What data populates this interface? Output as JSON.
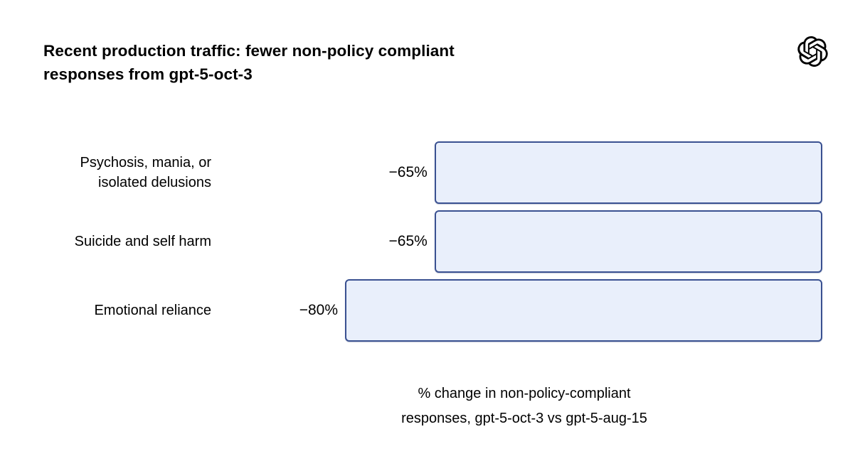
{
  "header": {
    "title": "Recent production traffic: fewer non-policy compliant\nresponses from gpt-5-oct-3",
    "logo": "openai-logo"
  },
  "chart_data": {
    "type": "bar",
    "orientation": "horizontal",
    "bar_anchor": "right",
    "title": "Recent production traffic: fewer non-policy compliant responses from gpt-5-oct-3",
    "xlabel": "% change in non-policy-compliant responses, gpt-5-oct-3 vs gpt-5-aug-15",
    "xlabel_display": "% change in non-policy-compliant\nresponses, gpt-5-oct-3 vs gpt-5-aug-15",
    "categories": [
      "Psychosis, mania, or isolated delusions",
      "Suicide and self harm",
      "Emotional reliance"
    ],
    "values": [
      -65,
      -65,
      -80
    ],
    "xlim": [
      -80,
      0
    ],
    "grid": false,
    "legend": null,
    "rows": [
      {
        "category": "Psychosis, mania, or\nisolated delusions",
        "value": -65,
        "value_label": "−65%"
      },
      {
        "category": "Suicide and self harm",
        "value": -65,
        "value_label": "−65%"
      },
      {
        "category": "Emotional reliance",
        "value": -80,
        "value_label": "−80%"
      }
    ],
    "colors": {
      "bar_fill": "#E9EFFB",
      "bar_border": "#3A5191",
      "text": "#000000",
      "background": "#FFFFFF"
    }
  }
}
